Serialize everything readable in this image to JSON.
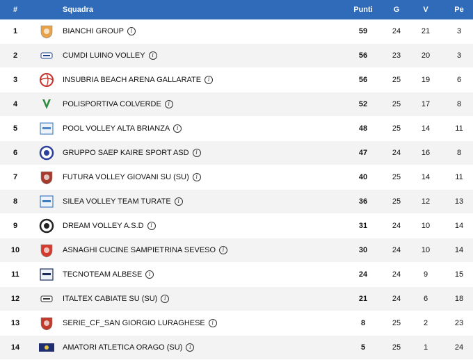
{
  "header": {
    "pos": "#",
    "team": "Squadra",
    "pts": "Punti",
    "g": "G",
    "v": "V",
    "pe": "Pe"
  },
  "info_icon": {
    "glyph": "i",
    "name": "info-icon"
  },
  "rows": [
    {
      "pos": "1",
      "team": "BIANCHI GROUP",
      "pts": "59",
      "g": "24",
      "v": "21",
      "pe": "3",
      "logo_color": "#e8a24a",
      "logo_shape": "shield"
    },
    {
      "pos": "2",
      "team": "CUMDI LUINO VOLLEY",
      "pts": "56",
      "g": "23",
      "v": "20",
      "pe": "3",
      "logo_color": "#1d3f8f",
      "logo_shape": "text"
    },
    {
      "pos": "3",
      "team": "INSUBRIA BEACH ARENA GALLARATE",
      "pts": "56",
      "g": "25",
      "v": "19",
      "pe": "6",
      "logo_color": "#c9312b",
      "logo_shape": "ball"
    },
    {
      "pos": "4",
      "team": "POLISPORTIVA COLVERDE",
      "pts": "52",
      "g": "25",
      "v": "17",
      "pe": "8",
      "logo_color": "#2e8b3e",
      "logo_shape": "v"
    },
    {
      "pos": "5",
      "team": "POOL VOLLEY ALTA BRIANZA",
      "pts": "48",
      "g": "25",
      "v": "14",
      "pe": "11",
      "logo_color": "#4a86c8",
      "logo_shape": "square"
    },
    {
      "pos": "6",
      "team": "GRUPPO SAEP KAIRE SPORT ASD",
      "pts": "47",
      "g": "24",
      "v": "16",
      "pe": "8",
      "logo_color": "#2d3f9a",
      "logo_shape": "circle"
    },
    {
      "pos": "7",
      "team": "FUTURA VOLLEY GIOVANI SU (SU)",
      "pts": "40",
      "g": "25",
      "v": "14",
      "pe": "11",
      "logo_color": "#a63a2c",
      "logo_shape": "shield"
    },
    {
      "pos": "8",
      "team": "SILEA VOLLEY TEAM TURATE",
      "pts": "36",
      "g": "25",
      "v": "12",
      "pe": "13",
      "logo_color": "#3c7dc2",
      "logo_shape": "square"
    },
    {
      "pos": "9",
      "team": "DREAM VOLLEY A.S.D",
      "pts": "31",
      "g": "24",
      "v": "10",
      "pe": "14",
      "logo_color": "#222222",
      "logo_shape": "circle"
    },
    {
      "pos": "10",
      "team": "ASNAGHI CUCINE SAMPIETRINA SEVESO",
      "pts": "30",
      "g": "24",
      "v": "10",
      "pe": "14",
      "logo_color": "#d23b2e",
      "logo_shape": "shield"
    },
    {
      "pos": "11",
      "team": "TECNOTEAM ALBESE",
      "pts": "24",
      "g": "24",
      "v": "9",
      "pe": "15",
      "logo_color": "#1a2a5a",
      "logo_shape": "square"
    },
    {
      "pos": "12",
      "team": "ITALTEX CABIATE SU (SU)",
      "pts": "21",
      "g": "24",
      "v": "6",
      "pe": "18",
      "logo_color": "#333333",
      "logo_shape": "text"
    },
    {
      "pos": "13",
      "team": "SERIE_CF_SAN GIORGIO LURAGHESE",
      "pts": "8",
      "g": "25",
      "v": "2",
      "pe": "23",
      "logo_color": "#c0392b",
      "logo_shape": "shield"
    },
    {
      "pos": "14",
      "team": "AMATORI ATLETICA ORAGO (SU)",
      "pts": "5",
      "g": "25",
      "v": "1",
      "pe": "24",
      "logo_color": "#1f2e6e",
      "logo_shape": "banner"
    }
  ]
}
